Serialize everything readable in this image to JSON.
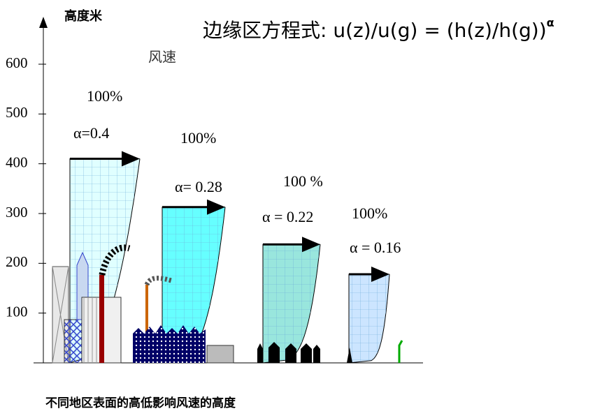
{
  "chart_data": {
    "type": "wind-profile",
    "title": "边缘区方程式: u(z)/u(g) = (h(z)/h(g))",
    "title_superscript": "α",
    "y_label": "高度米",
    "x_label": "风速",
    "caption": "不同地区表面的高低影响风速的高度",
    "ylim": [
      0,
      600
    ],
    "yticks": [
      100,
      200,
      300,
      400,
      500,
      600
    ],
    "series": [
      {
        "color": "#e0ffff",
        "height": 410,
        "alpha": 0.4,
        "alpha_label": "α=0.4",
        "speed_label": "100%"
      },
      {
        "color": "#66ffff",
        "height": 313,
        "alpha": 0.28,
        "alpha_label": "α= 0.28",
        "speed_label": "100%"
      },
      {
        "color": "#99e6dd",
        "height": 238,
        "alpha": 0.22,
        "alpha_label": "α = 0.22",
        "speed_label": "100 %"
      },
      {
        "color": "#cce5ff",
        "height": 178,
        "alpha": 0.16,
        "alpha_label": "α = 0.16",
        "speed_label": "100%"
      }
    ]
  }
}
